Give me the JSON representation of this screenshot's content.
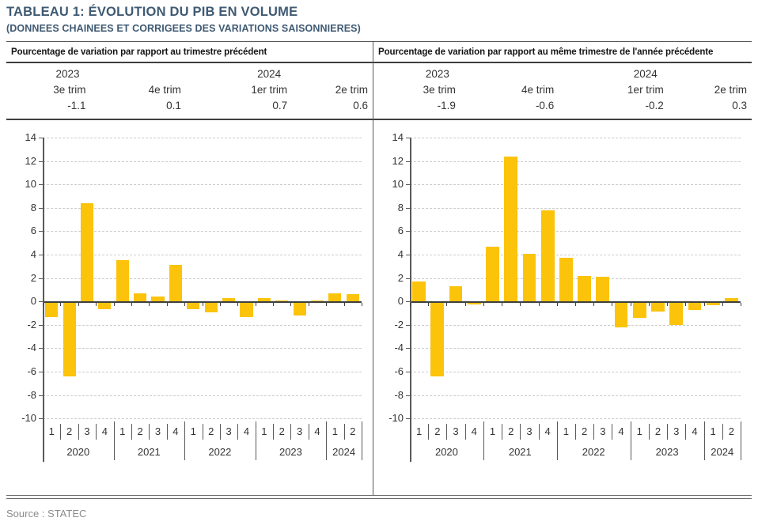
{
  "title": "TABLEAU 1: ÉVOLUTION DU PIB EN VOLUME",
  "subtitle": "(DONNEES CHAINEES ET CORRIGEES DES VARIATIONS SAISONNIERES)",
  "source_note": "Source : STATEC",
  "colors": {
    "bar": "#fcc30b",
    "title": "#3f5a73",
    "strong_rule": "#3f3f3f",
    "axis": "#595959",
    "grid": "#cccccc",
    "text": "#333333",
    "muted": "#8c8c8c"
  },
  "summary_year_labels": [
    "2023",
    "2024"
  ],
  "summary_quarter_labels": [
    "3e trim",
    "4e trim",
    "1er trim",
    "2e trim"
  ],
  "panels": [
    {
      "header": "Pourcentage de variation par rapport au trimestre précédent",
      "summary_values": [
        "-1.1",
        "0.1",
        "0.7",
        "0.6"
      ]
    },
    {
      "header": "Pourcentage de variation par rapport au même trimestre de l'année précédente",
      "summary_values": [
        "-1.9",
        "-0.6",
        "-0.2",
        "0.3"
      ]
    }
  ],
  "chart_data": [
    {
      "type": "bar",
      "name": "pib-variation-trimestre-precedent",
      "title": "Pourcentage de variation par rapport au trimestre précédent",
      "ylim": [
        -10,
        14
      ],
      "ytick_step": 2,
      "grid": "horizontal-dashed",
      "legend": "none",
      "bar_color": "#fcc30b",
      "year_groups": [
        {
          "label": "2020",
          "count": 4
        },
        {
          "label": "2021",
          "count": 4
        },
        {
          "label": "2022",
          "count": 4
        },
        {
          "label": "2023",
          "count": 4
        },
        {
          "label": "2024",
          "count": 2
        }
      ],
      "categories": [
        "2020 T1",
        "2020 T2",
        "2020 T3",
        "2020 T4",
        "2021 T1",
        "2021 T2",
        "2021 T3",
        "2021 T4",
        "2022 T1",
        "2022 T2",
        "2022 T3",
        "2022 T4",
        "2023 T1",
        "2023 T2",
        "2023 T3",
        "2023 T4",
        "2024 T1",
        "2024 T2"
      ],
      "quarter_tick_labels": [
        "1",
        "2",
        "3",
        "4",
        "1",
        "2",
        "3",
        "4",
        "1",
        "2",
        "3",
        "4",
        "1",
        "2",
        "3",
        "4",
        "1",
        "2"
      ],
      "values": [
        -1.2,
        -6.3,
        8.4,
        -0.5,
        3.5,
        0.7,
        0.4,
        3.1,
        -0.5,
        -0.8,
        0.3,
        -1.2,
        0.3,
        0.1,
        -1.1,
        0.1,
        0.7,
        0.6
      ]
    },
    {
      "type": "bar",
      "name": "pib-variation-meme-trimestre-annee-precedente",
      "title": "Pourcentage de variation par rapport au même trimestre de l'année précédente",
      "ylim": [
        -10,
        14
      ],
      "ytick_step": 2,
      "grid": "horizontal-dashed",
      "legend": "none",
      "bar_color": "#fcc30b",
      "year_groups": [
        {
          "label": "2020",
          "count": 4
        },
        {
          "label": "2021",
          "count": 4
        },
        {
          "label": "2022",
          "count": 4
        },
        {
          "label": "2023",
          "count": 4
        },
        {
          "label": "2024",
          "count": 2
        }
      ],
      "categories": [
        "2020 T1",
        "2020 T2",
        "2020 T3",
        "2020 T4",
        "2021 T1",
        "2021 T2",
        "2021 T3",
        "2021 T4",
        "2022 T1",
        "2022 T2",
        "2022 T3",
        "2022 T4",
        "2023 T1",
        "2023 T2",
        "2023 T3",
        "2023 T4",
        "2024 T1",
        "2024 T2"
      ],
      "quarter_tick_labels": [
        "1",
        "2",
        "3",
        "4",
        "1",
        "2",
        "3",
        "4",
        "1",
        "2",
        "3",
        "4",
        "1",
        "2",
        "3",
        "4",
        "1",
        "2"
      ],
      "values": [
        1.7,
        -6.3,
        1.3,
        -0.1,
        4.7,
        12.4,
        4.1,
        7.8,
        3.7,
        2.2,
        2.1,
        -2.1,
        -1.3,
        -0.7,
        -1.9,
        -0.6,
        -0.2,
        0.3
      ]
    }
  ]
}
